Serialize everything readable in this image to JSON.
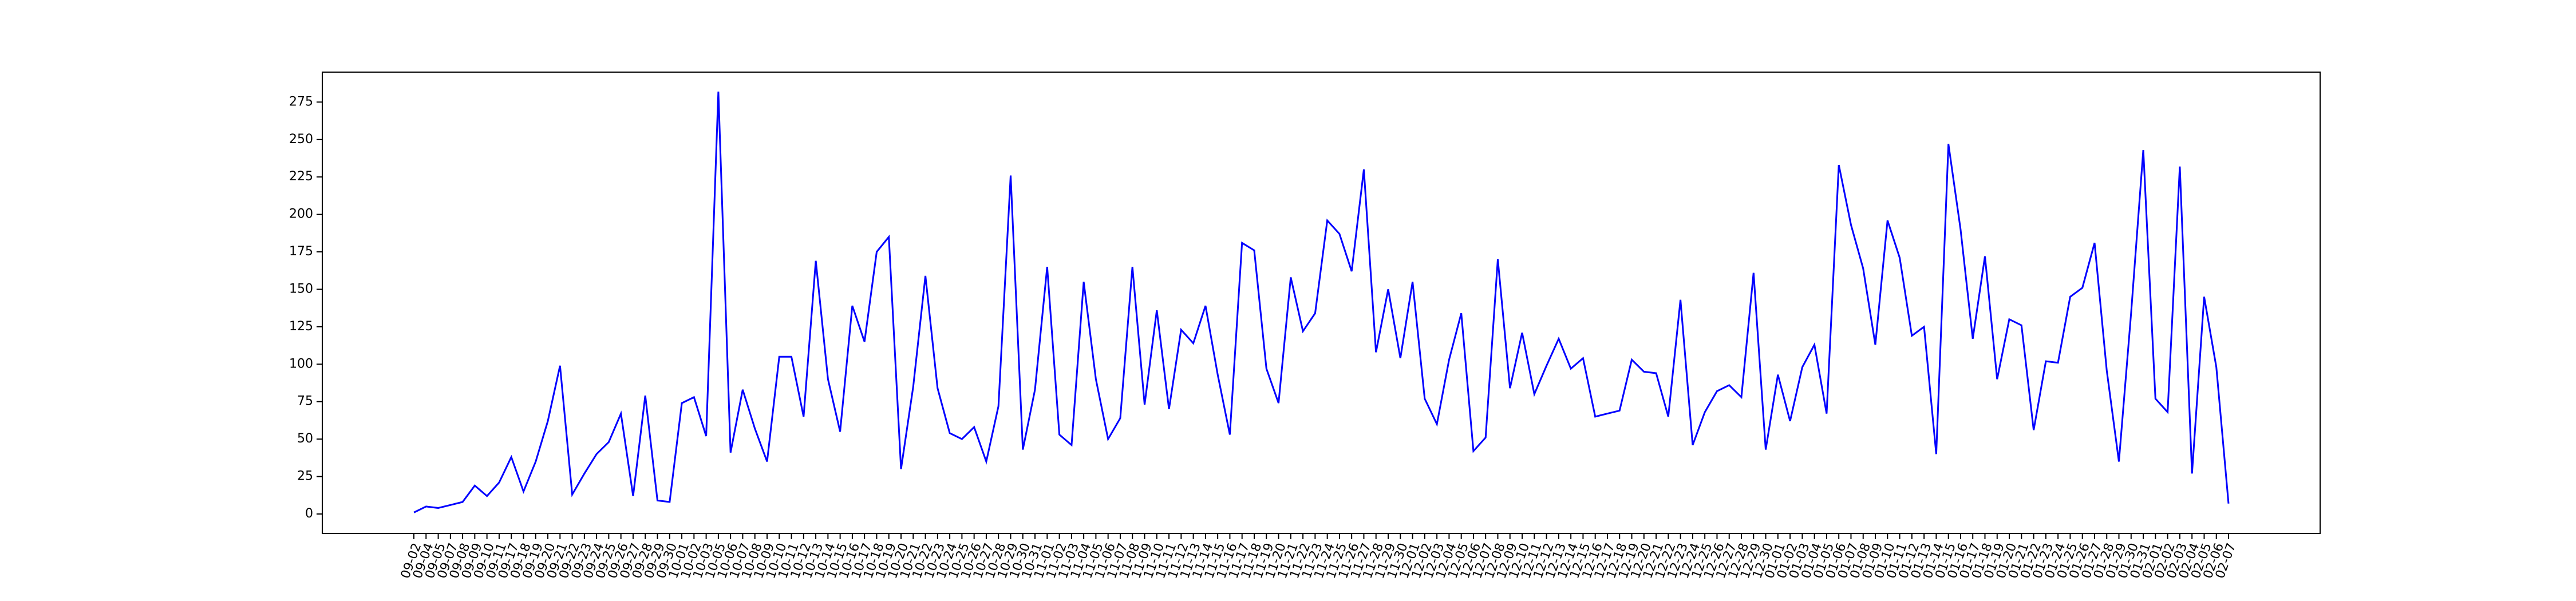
{
  "chart_data": {
    "type": "line",
    "title": "",
    "xlabel": "",
    "ylabel": "",
    "ylim": [
      -13,
      295
    ],
    "yticks": [
      0,
      25,
      50,
      75,
      100,
      125,
      150,
      175,
      200,
      225,
      250,
      275
    ],
    "grid": false,
    "legend": "none",
    "line_color": "#0000ff",
    "x": [
      "09-02",
      "09-04",
      "09-05",
      "09-07",
      "09-08",
      "09-09",
      "09-10",
      "09-11",
      "09-17",
      "09-18",
      "09-19",
      "09-20",
      "09-21",
      "09-22",
      "09-23",
      "09-24",
      "09-25",
      "09-26",
      "09-27",
      "09-28",
      "09-29",
      "09-30",
      "10-01",
      "10-02",
      "10-03",
      "10-05",
      "10-06",
      "10-07",
      "10-08",
      "10-09",
      "10-10",
      "10-11",
      "10-12",
      "10-13",
      "10-14",
      "10-15",
      "10-16",
      "10-17",
      "10-18",
      "10-19",
      "10-20",
      "10-21",
      "10-22",
      "10-23",
      "10-24",
      "10-25",
      "10-26",
      "10-27",
      "10-28",
      "10-29",
      "10-30",
      "10-31",
      "11-01",
      "11-02",
      "11-03",
      "11-04",
      "11-05",
      "11-06",
      "11-07",
      "11-08",
      "11-09",
      "11-10",
      "11-11",
      "11-12",
      "11-13",
      "11-14",
      "11-15",
      "11-16",
      "11-17",
      "11-18",
      "11-19",
      "11-20",
      "11-21",
      "11-22",
      "11-23",
      "11-24",
      "11-25",
      "11-26",
      "11-27",
      "11-28",
      "11-29",
      "11-30",
      "12-01",
      "12-02",
      "12-03",
      "12-04",
      "12-05",
      "12-06",
      "12-07",
      "12-08",
      "12-09",
      "12-10",
      "12-11",
      "12-12",
      "12-13",
      "12-14",
      "12-15",
      "12-16",
      "12-17",
      "12-18",
      "12-19",
      "12-20",
      "12-21",
      "12-22",
      "12-23",
      "12-24",
      "12-25",
      "12-26",
      "12-27",
      "12-28",
      "12-29",
      "12-30",
      "01-01",
      "01-02",
      "01-03",
      "01-04",
      "01-05",
      "01-06",
      "01-07",
      "01-08",
      "01-09",
      "01-10",
      "01-11",
      "01-12",
      "01-13",
      "01-14",
      "01-15",
      "01-16",
      "01-17",
      "01-18",
      "01-19",
      "01-20",
      "01-21",
      "01-22",
      "01-23",
      "01-24",
      "01-25",
      "01-26",
      "01-27",
      "01-28",
      "01-29",
      "01-30",
      "01-31",
      "02-01",
      "02-02",
      "02-03",
      "02-04",
      "02-05",
      "02-06",
      "02-07"
    ],
    "series": [
      {
        "values": [
          1,
          5,
          4,
          6,
          8,
          19,
          12,
          21,
          38,
          15,
          35,
          62,
          99,
          13,
          27,
          40,
          48,
          67,
          12,
          79,
          9,
          8,
          74,
          78,
          52,
          282,
          41,
          83,
          57,
          35,
          105,
          105,
          65,
          169,
          90,
          55,
          139,
          115,
          175,
          185,
          30,
          85,
          159,
          84,
          54,
          50,
          58,
          35,
          72,
          226,
          43,
          83,
          165,
          53,
          46,
          155,
          90,
          50,
          64,
          165,
          73,
          136,
          70,
          123,
          114,
          139,
          93,
          53,
          181,
          176,
          97,
          74,
          158,
          122,
          134,
          196,
          187,
          162,
          230,
          108,
          150,
          104,
          155,
          77,
          60,
          103,
          134,
          42,
          51,
          170,
          84,
          121,
          80,
          99,
          117,
          97,
          104,
          65,
          67,
          69,
          103,
          95,
          94,
          65,
          143,
          46,
          68,
          82,
          86,
          78,
          161,
          43,
          93,
          62,
          98,
          113,
          67,
          233,
          193,
          164,
          113,
          196,
          171,
          119,
          125,
          40,
          247,
          190,
          117,
          172,
          90,
          130,
          126,
          56,
          102,
          101,
          145,
          151,
          181,
          96,
          35,
          134,
          243,
          77,
          68,
          232,
          27,
          145,
          98,
          7
        ]
      }
    ]
  }
}
